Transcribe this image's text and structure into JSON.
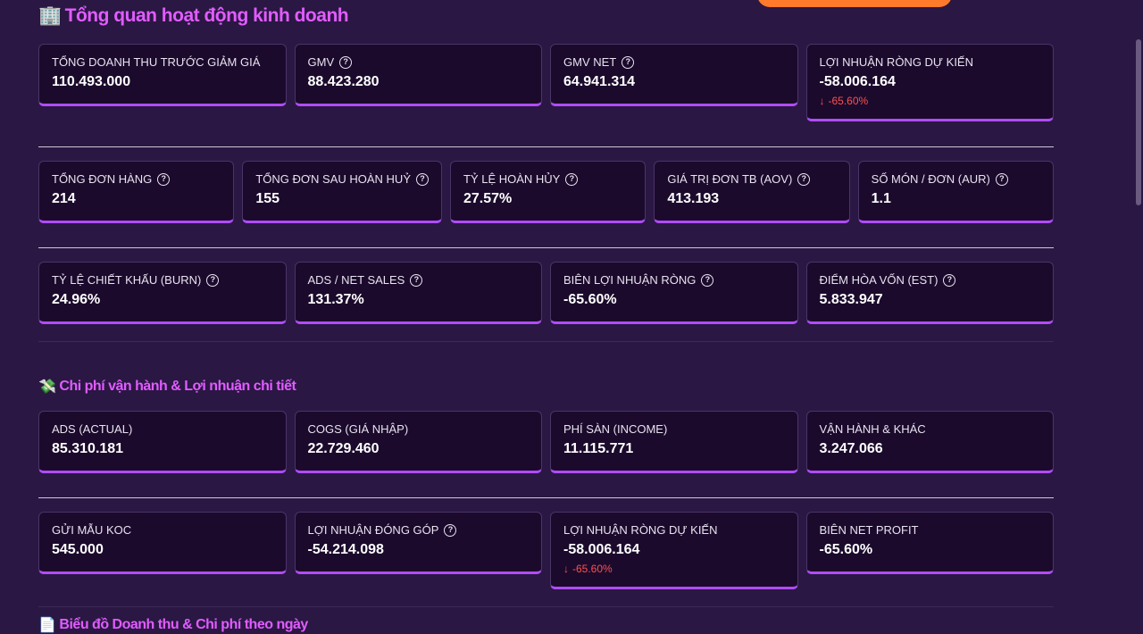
{
  "colors": {
    "accent": "#e15cff",
    "card_border": "#b14cff",
    "negative": "#ff4f4f",
    "background": "#2a1743"
  },
  "overview": {
    "emoji": "🏢",
    "title": "Tổng quan hoạt động kinh doanh",
    "row1": [
      {
        "label": "TỔNG DOANH THU TRƯỚC GIẢM GIÁ",
        "value": "110.493.000",
        "help": false
      },
      {
        "label": "GMV",
        "value": "88.423.280",
        "help": true
      },
      {
        "label": "GMV NET",
        "value": "64.941.314",
        "help": true
      },
      {
        "label": "LỢI NHUẬN RÒNG DỰ KIẾN",
        "value": "-58.006.164",
        "help": false,
        "delta": "-65.60%"
      }
    ],
    "row2": [
      {
        "label": "TỔNG ĐƠN HÀNG",
        "value": "214",
        "help": true
      },
      {
        "label": "TỔNG ĐƠN SAU HOÀN HUỶ",
        "value": "155",
        "help": true
      },
      {
        "label": "TỶ LỆ HOÀN HỦY",
        "value": "27.57%",
        "help": true
      },
      {
        "label": "GIÁ TRỊ ĐƠN TB (AOV)",
        "value": "413.193",
        "help": true
      },
      {
        "label": "SỐ MÓN / ĐƠN (AUR)",
        "value": "1.1",
        "help": true
      }
    ],
    "row3": [
      {
        "label": "TỶ LỆ CHIẾT KHẤU (BURN)",
        "value": "24.96%",
        "help": true
      },
      {
        "label": "ADS / NET SALES",
        "value": "131.37%",
        "help": true
      },
      {
        "label": "BIÊN LỢI NHUẬN RÒNG",
        "value": "-65.60%",
        "help": true
      },
      {
        "label": "ĐIỂM HÒA VỐN (EST)",
        "value": "5.833.947",
        "help": true
      }
    ]
  },
  "costs": {
    "emoji": "💸",
    "title": "Chi phí vận hành & Lợi nhuận chi tiết",
    "row1": [
      {
        "label": "ADS (ACTUAL)",
        "value": "85.310.181",
        "help": false
      },
      {
        "label": "COGS (GIÁ NHẬP)",
        "value": "22.729.460",
        "help": false
      },
      {
        "label": "PHÍ SÀN (INCOME)",
        "value": "11.115.771",
        "help": false
      },
      {
        "label": "VẬN HÀNH & KHÁC",
        "value": "3.247.066",
        "help": false
      }
    ],
    "row2": [
      {
        "label": "GỬI MẪU KOC",
        "value": "545.000",
        "help": false
      },
      {
        "label": "LỢI NHUẬN ĐÓNG GÓP",
        "value": "-54.214.098",
        "help": true
      },
      {
        "label": "LỢI NHUẬN RÒNG DỰ KIẾN",
        "value": "-58.006.164",
        "help": false,
        "delta": "-65.60%"
      },
      {
        "label": "BIÊN NET PROFIT",
        "value": "-65.60%",
        "help": false
      }
    ]
  },
  "next_section": {
    "emoji": "📄",
    "title": "Biểu đồ Doanh thu & Chi phí theo ngày"
  }
}
